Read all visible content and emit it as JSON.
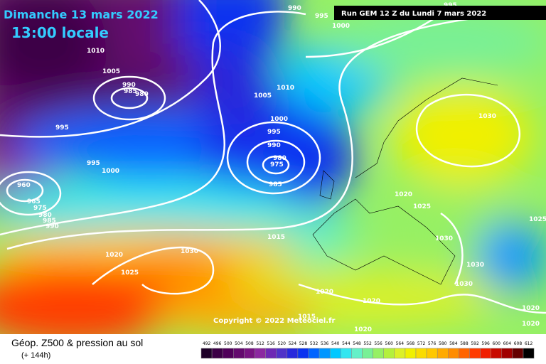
{
  "header": {
    "date": "Dimanche 13 mars 2022",
    "time": "13:00 locale",
    "run": "Run GEM 12 Z du Lundi 7 mars 2022"
  },
  "copyright": "Copyright © 2022 Meteociel.fr",
  "footer": {
    "title": "Géop. Z500 & pression au sol",
    "lead": "(+ 144h)"
  },
  "scale": [
    {
      "value": 492,
      "color": "#1e0028"
    },
    {
      "value": 496,
      "color": "#3c0046"
    },
    {
      "value": 500,
      "color": "#50005a"
    },
    {
      "value": 504,
      "color": "#640a6e"
    },
    {
      "value": 508,
      "color": "#781482"
    },
    {
      "value": 512,
      "color": "#8c28a0"
    },
    {
      "value": 516,
      "color": "#6e28b4"
    },
    {
      "value": 520,
      "color": "#5032c8"
    },
    {
      "value": 524,
      "color": "#2828dc"
    },
    {
      "value": 528,
      "color": "#0a32f0"
    },
    {
      "value": 532,
      "color": "#0064ff"
    },
    {
      "value": 536,
      "color": "#0096ff"
    },
    {
      "value": 540,
      "color": "#00c8ff"
    },
    {
      "value": 544,
      "color": "#32e6f0"
    },
    {
      "value": 548,
      "color": "#64f0c8"
    },
    {
      "value": 552,
      "color": "#78f096"
    },
    {
      "value": 556,
      "color": "#96f064"
    },
    {
      "value": 560,
      "color": "#b4f03c"
    },
    {
      "value": 564,
      "color": "#dcf028"
    },
    {
      "value": 568,
      "color": "#f0f000"
    },
    {
      "value": 572,
      "color": "#fadc00"
    },
    {
      "value": 576,
      "color": "#ffc800"
    },
    {
      "value": 580,
      "color": "#ffaa00"
    },
    {
      "value": 584,
      "color": "#ff8c00"
    },
    {
      "value": 588,
      "color": "#ff6400"
    },
    {
      "value": 592,
      "color": "#ff3c00"
    },
    {
      "value": 596,
      "color": "#f01e00"
    },
    {
      "value": 600,
      "color": "#c80a00"
    },
    {
      "value": 604,
      "color": "#a00000"
    },
    {
      "value": 608,
      "color": "#640000"
    },
    {
      "value": 612,
      "color": "#000000"
    }
  ],
  "isobars": [
    "990",
    "995",
    "1000",
    "995",
    "1010",
    "1005",
    "990",
    "985",
    "980",
    "995",
    "995",
    "1000",
    "960",
    "965",
    "975",
    "980",
    "985",
    "990",
    "1005",
    "1010",
    "1000",
    "995",
    "990",
    "980",
    "975",
    "985",
    "1015",
    "1030",
    "1020",
    "1025",
    "1030",
    "1025",
    "1030",
    "1030",
    "1030",
    "1020",
    "1025",
    "1020",
    "1020",
    "1015",
    "1020",
    "1020",
    "1020"
  ]
}
